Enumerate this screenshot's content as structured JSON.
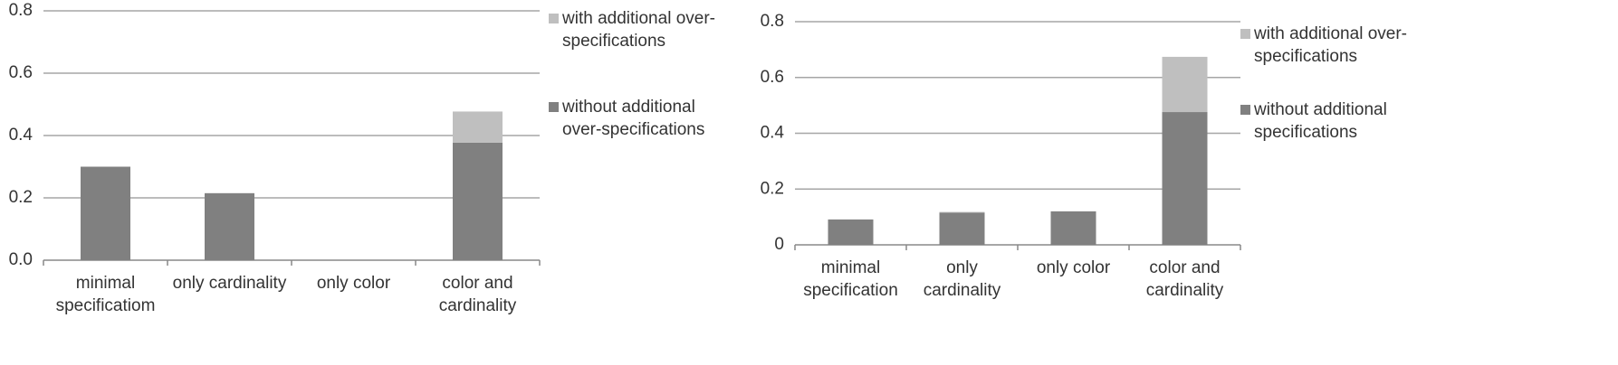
{
  "chart_data": [
    {
      "type": "bar",
      "stacked": true,
      "categories": [
        "minimal specificatiom",
        "only cardinality",
        "only color",
        "color and cardinality"
      ],
      "series": [
        {
          "name": "without additional over-specifications",
          "color": "#808080",
          "values": [
            0.3,
            0.215,
            0,
            0.377
          ]
        },
        {
          "name": "with additional over-specifications",
          "color": "#bfbfbf",
          "values": [
            0,
            0,
            0,
            0.1
          ]
        }
      ],
      "ylim": [
        0,
        0.8
      ],
      "yticks": [
        {
          "value": 0,
          "label": "0.0"
        },
        0.2,
        0.4,
        0.6,
        0.8
      ],
      "grid": true,
      "legend": "right"
    },
    {
      "type": "bar",
      "stacked": true,
      "categories": [
        "minimal specification",
        "only cardinality",
        "only color",
        "color and cardinality"
      ],
      "series": [
        {
          "name": "without additional specifications",
          "color": "#808080",
          "values": [
            0.091,
            0.115,
            0.12,
            0.476
          ]
        },
        {
          "name": "with additional over-specifications",
          "color": "#bfbfbf",
          "values": [
            0,
            0.003,
            0,
            0.198
          ]
        }
      ],
      "ylim": [
        0,
        0.8
      ],
      "yticks": [
        0,
        0.2,
        0.4,
        0.6,
        0.8
      ],
      "grid": true,
      "legend": "right"
    }
  ]
}
